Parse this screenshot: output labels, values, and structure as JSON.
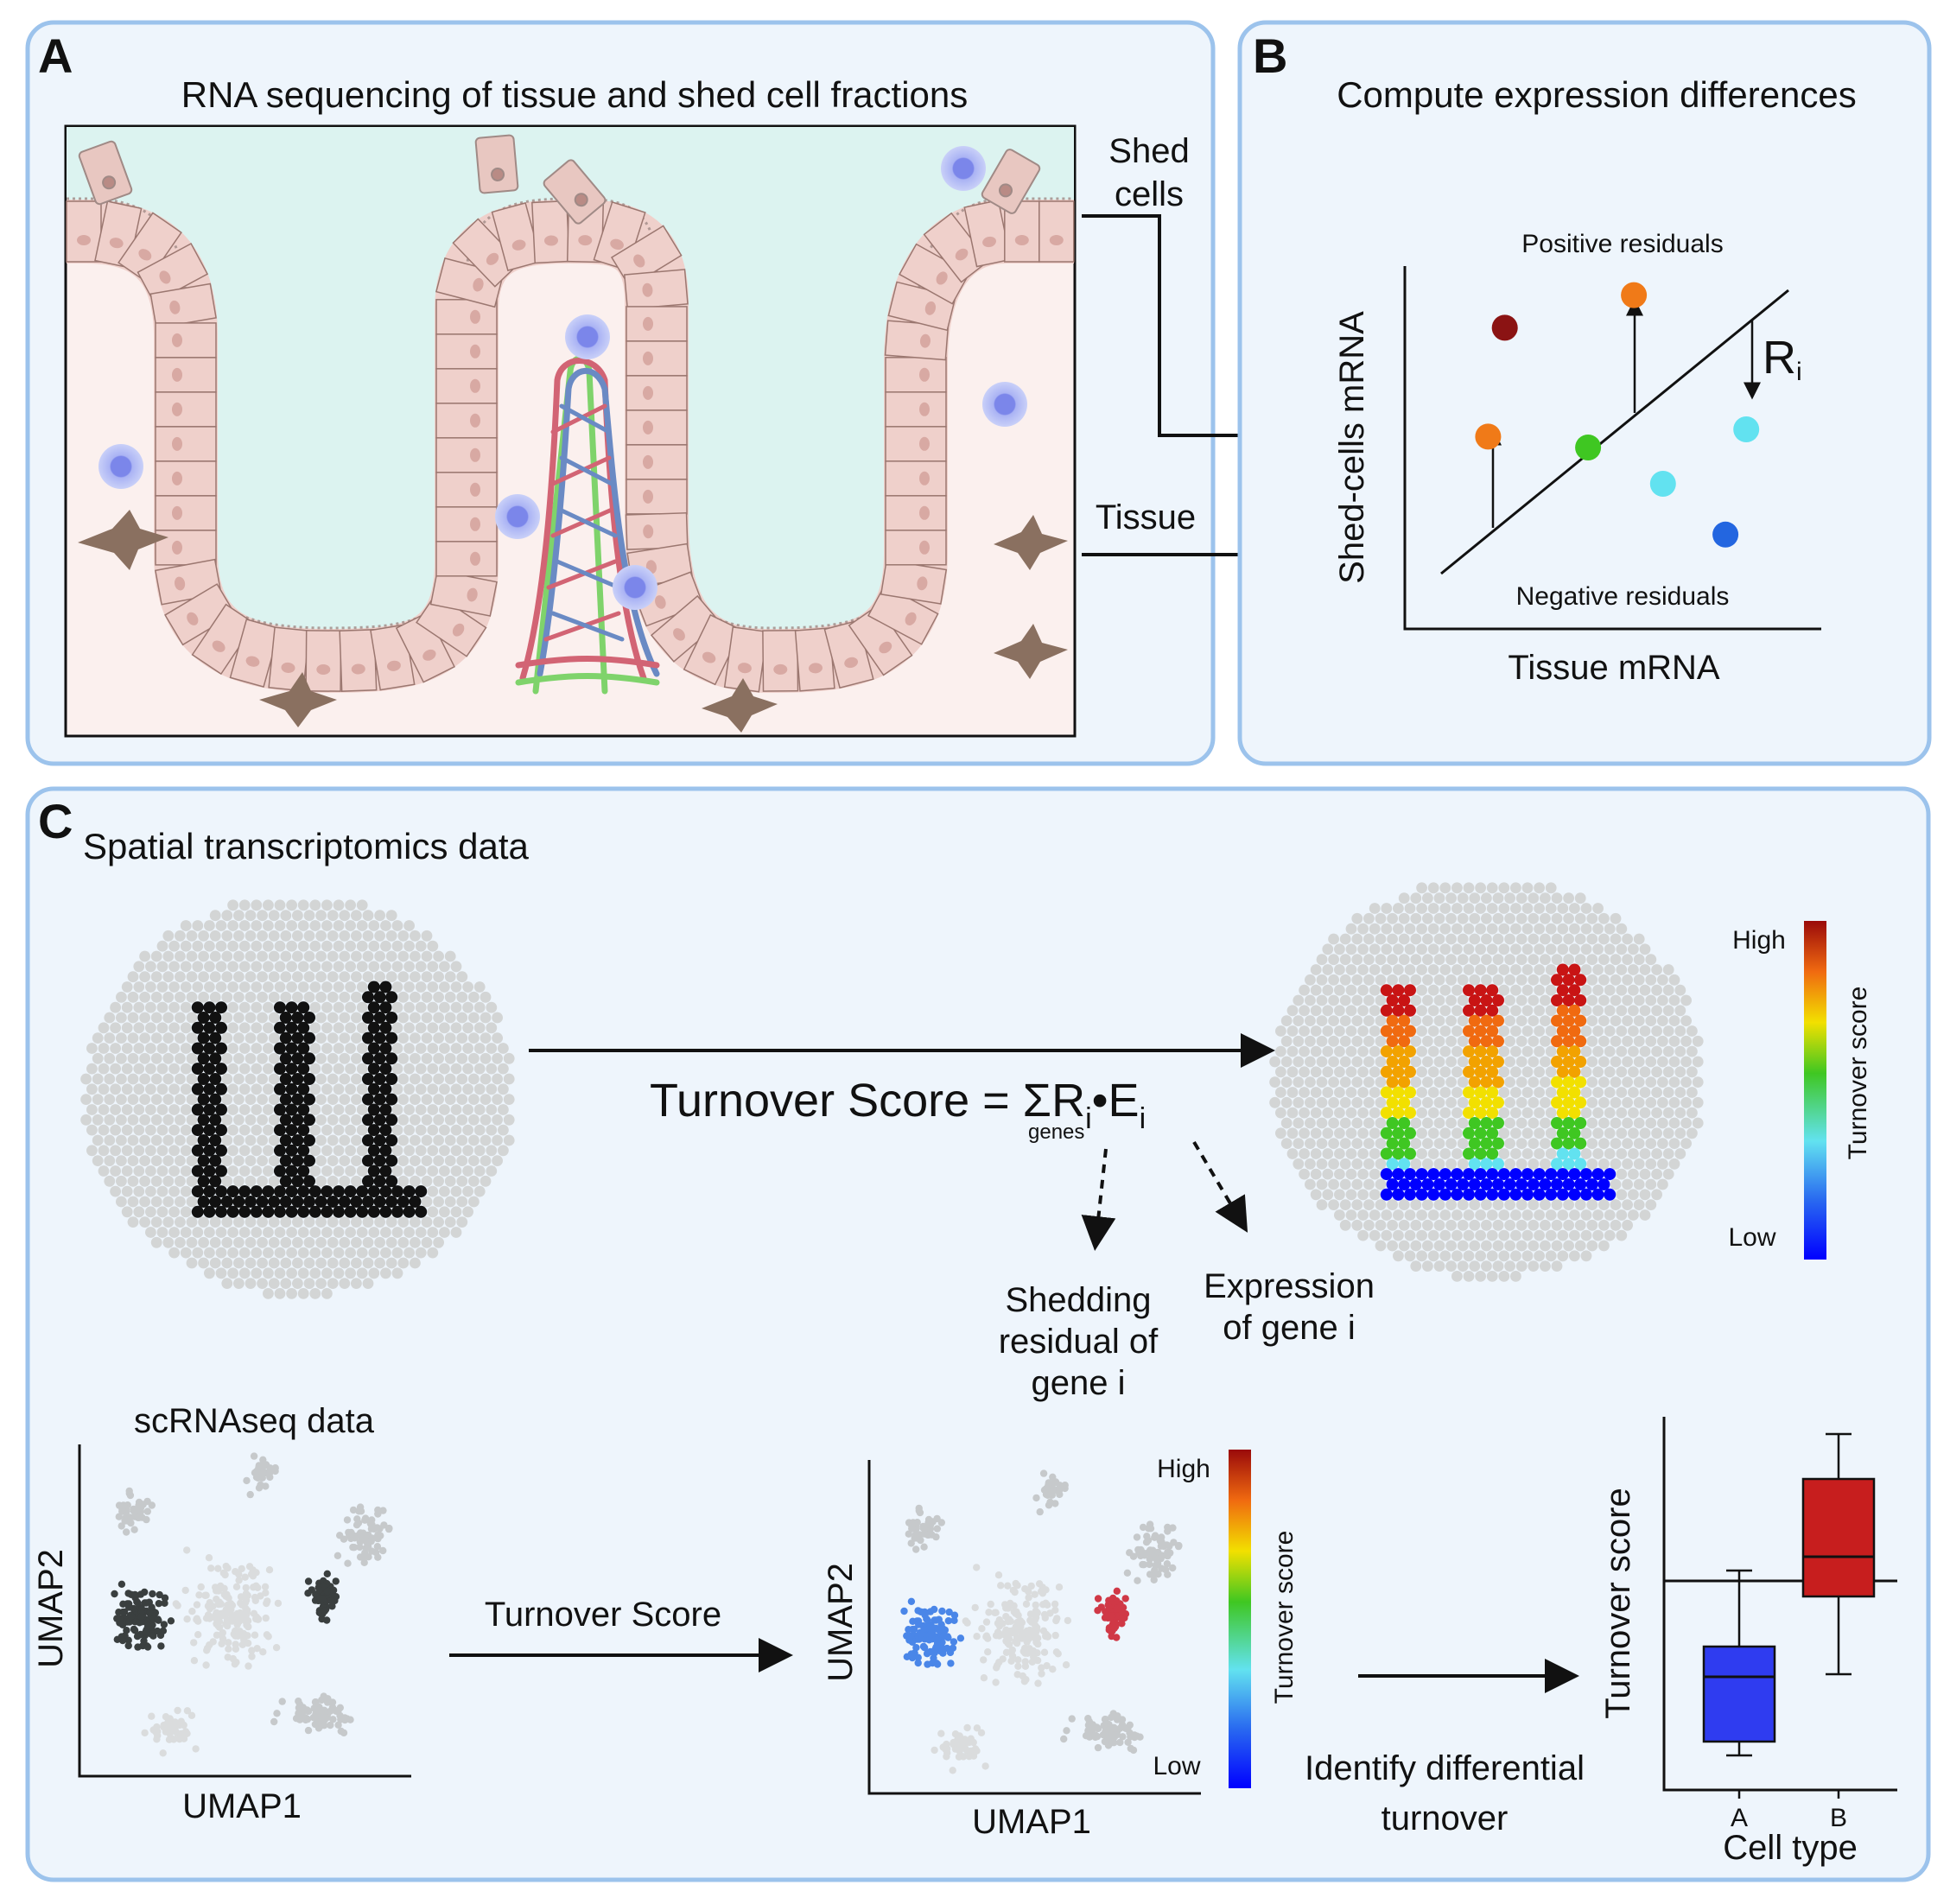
{
  "panel_a": {
    "letter": "A",
    "title": "RNA sequencing of tissue and shed cell fractions",
    "shed_line1": "Shed",
    "shed_line2": "cells",
    "tissue": "Tissue"
  },
  "panel_b": {
    "letter": "B",
    "title": "Compute expression differences",
    "positive": "Positive residuals",
    "negative": "Negative residuals",
    "xlabel": "Tissue mRNA",
    "ylabel": "Shed-cells mRNA",
    "residual_symbol": "R",
    "residual_sub": "i",
    "points": [
      {
        "x": 0.24,
        "y": 0.83,
        "color": "#8b1313"
      },
      {
        "x": 0.55,
        "y": 0.92,
        "color": "#f07a18"
      },
      {
        "x": 0.2,
        "y": 0.53,
        "color": "#f07a18"
      },
      {
        "x": 0.44,
        "y": 0.5,
        "color": "#3fc722"
      },
      {
        "x": 0.82,
        "y": 0.55,
        "color": "#62e2f0"
      },
      {
        "x": 0.62,
        "y": 0.4,
        "color": "#62e2f0"
      },
      {
        "x": 0.77,
        "y": 0.26,
        "color": "#2366e0"
      }
    ]
  },
  "panel_c": {
    "letter": "C",
    "title": "Spatial transcriptomics data",
    "formula_main": "Turnover Score = ΣR",
    "formula_i1": "i",
    "formula_dot": "•E",
    "formula_i2": "i",
    "formula_sub": "genes",
    "shed_resid_1": "Shedding",
    "shed_resid_2": "residual of",
    "shed_resid_3": "gene i",
    "expr_1": "Expression",
    "expr_2": "of gene i",
    "colorbar_high": "High",
    "colorbar_low": "Low",
    "colorbar_label": "Turnover score",
    "scrna_title": "scRNAseq data",
    "umap1": "UMAP1",
    "umap2": "UMAP2",
    "arrow_label": "Turnover Score",
    "identify_1": "Identify differential",
    "identify_2": "turnover",
    "boxplot": {
      "ylabel": "Turnover score",
      "xlabel": "Cell type",
      "categories": [
        "A",
        "B"
      ],
      "colors": [
        "#2f3cf0",
        "#c71e1e"
      ]
    }
  },
  "colors": {
    "panel_border": "#9cc3ec",
    "panel_fill": "#eef5fc",
    "lumen": "#dcf3f0",
    "tissue_bg": "#fbf0ee",
    "cell": "#efd0cb",
    "cell_stroke": "#9b7770",
    "spot_grey": "#d3d5d5",
    "spot_black": "#111111"
  },
  "colormap": [
    "#0000ff",
    "#2a6cf0",
    "#62e2f0",
    "#3fc722",
    "#f2e000",
    "#f2a200",
    "#f06a10",
    "#c81414"
  ]
}
